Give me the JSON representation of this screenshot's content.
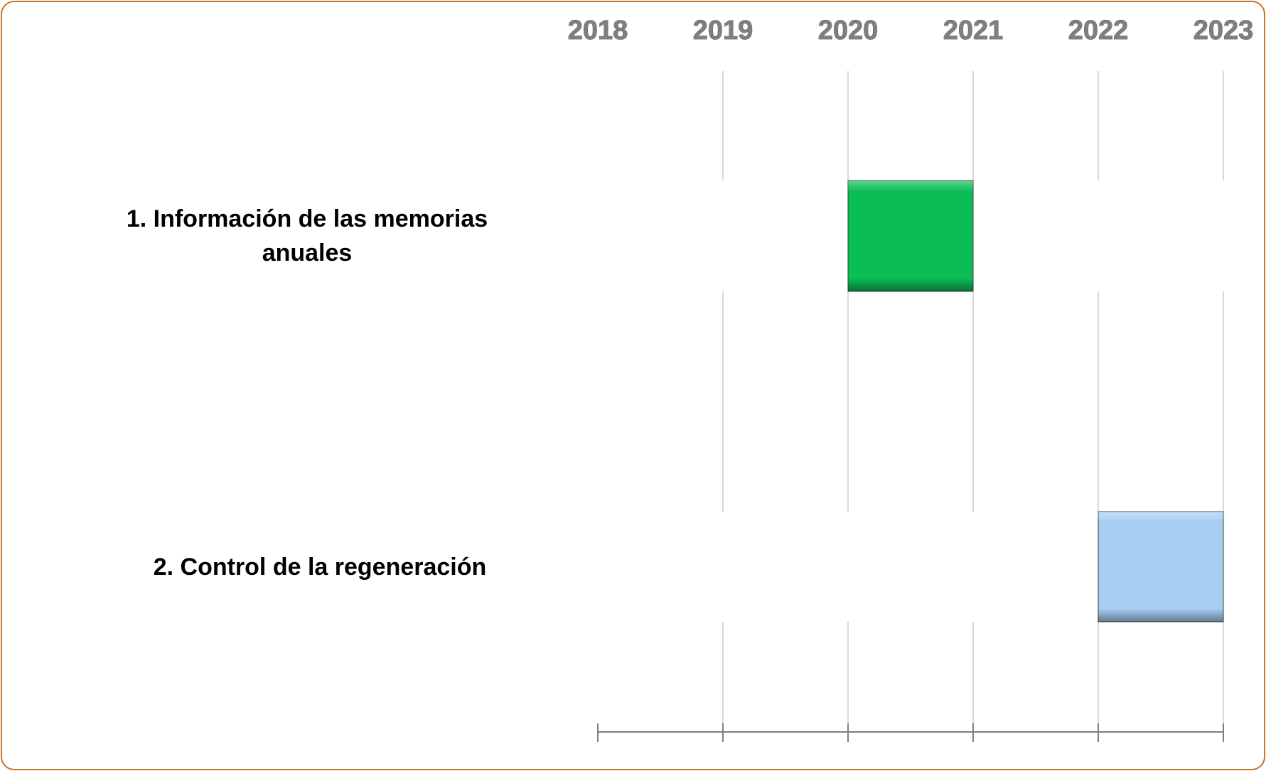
{
  "chart_data": {
    "type": "gantt",
    "categories": [
      "1. Información de las memorias anuales",
      "2. Control de la regeneración"
    ],
    "start": [
      2020,
      2022
    ],
    "end": [
      2021,
      2023
    ],
    "colors": [
      "#0bbd55",
      "#a7cdf2"
    ],
    "xlim": [
      2018,
      2023
    ],
    "xticks": [
      2018,
      2019,
      2020,
      2021,
      2022,
      2023
    ],
    "grid": true
  }
}
